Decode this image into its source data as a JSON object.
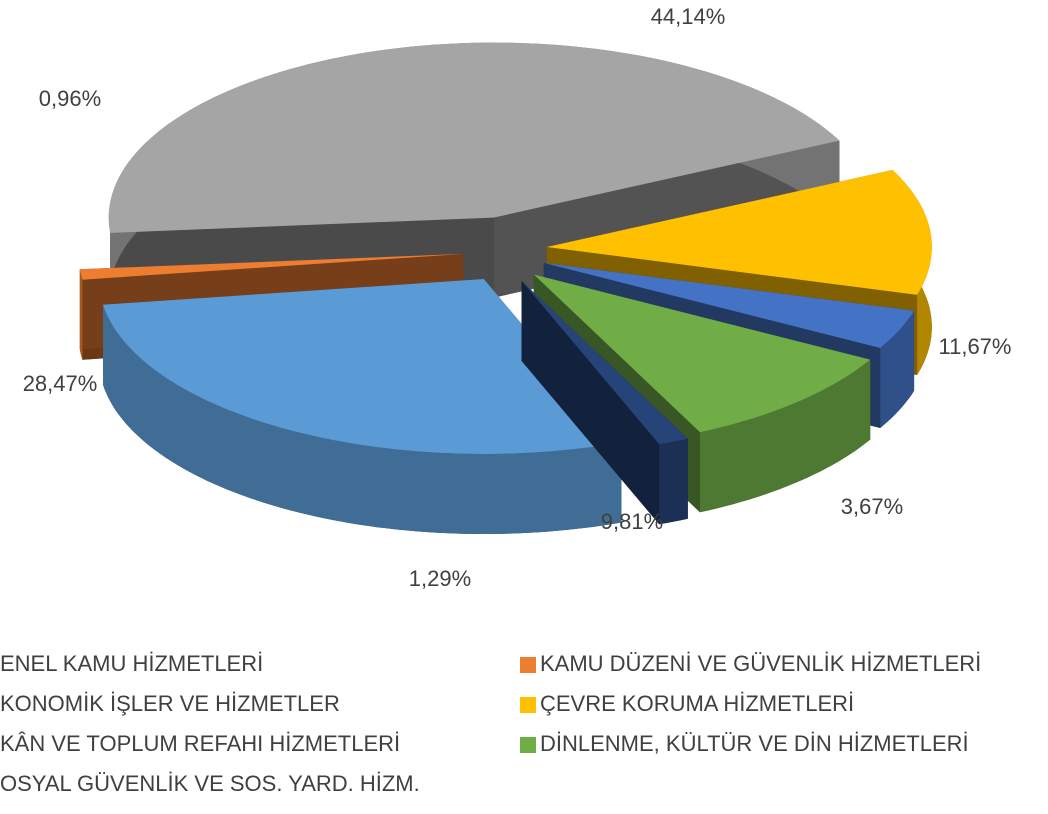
{
  "chart_data": {
    "type": "pie",
    "categories": [
      "ENEL KAMU HİZMETLERİ",
      "KAMU DÜZENİ VE GÜVENLİK HİZMETLERİ",
      "KONOMİK İŞLER VE HİZMETLER",
      "ÇEVRE KORUMA HİZMETLERİ",
      "KÂN VE TOPLUM REFAHI HİZMETLERİ",
      "DİNLENME, KÜLTÜR VE DİN HİZMETLERİ",
      "OSYAL GÜVENLİK VE SOS. YARD. HİZM."
    ],
    "values": [
      44.14,
      0.96,
      28.47,
      11.67,
      1.29,
      9.81,
      3.67
    ],
    "value_labels": [
      "44,14%",
      "0,96%",
      "28,47%",
      "11,67%",
      "1,29%",
      "9,81%",
      "3,67%"
    ],
    "colors": [
      "#a5a5a5",
      "#ed7d31",
      "#5b9bd5",
      "#ffc000",
      "#264478",
      "#70ad47",
      "#4472c4"
    ]
  }
}
